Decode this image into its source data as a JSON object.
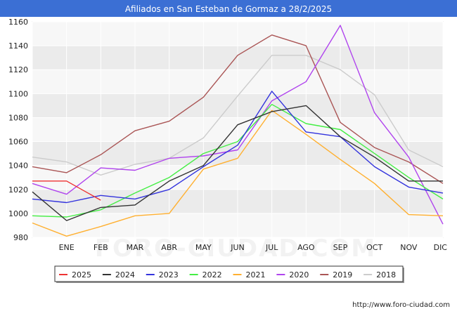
{
  "title": "Afiliados en San Esteban de Gormaz a 28/2/2025",
  "footer": "http://www.foro-ciudad.com",
  "watermark": "FORO-CIUDAD.COM",
  "colors": {
    "header_bg": "#3b6fd4",
    "plot_bg": "#f7f7f7",
    "grid": "#ffffff"
  },
  "chart_data": {
    "type": "line",
    "title": "Afiliados en San Esteban de Gormaz a 28/2/2025",
    "categories": [
      "",
      "ENE",
      "FEB",
      "MAR",
      "ABR",
      "MAY",
      "JUN",
      "JUL",
      "AGO",
      "SEP",
      "OCT",
      "NOV",
      "DIC"
    ],
    "xlabel": "",
    "ylabel": "",
    "ylim": [
      980,
      1160
    ],
    "yticks": [
      980,
      1000,
      1020,
      1040,
      1060,
      1080,
      1100,
      1120,
      1140,
      1160
    ],
    "grid": true,
    "legend_position": "bottom",
    "series": [
      {
        "name": "2025",
        "color": "#ee3333",
        "values": [
          1027,
          1027,
          1011,
          null,
          null,
          null,
          null,
          null,
          null,
          null,
          null,
          null,
          null
        ]
      },
      {
        "name": "2024",
        "color": "#333333",
        "values": [
          1018,
          994,
          1005,
          1007,
          1027,
          1040,
          1074,
          1085,
          1090,
          1064,
          1047,
          1027,
          1027
        ]
      },
      {
        "name": "2023",
        "color": "#3333dd",
        "values": [
          1012,
          1009,
          1015,
          1012,
          1020,
          1039,
          1057,
          1102,
          1068,
          1064,
          1039,
          1022,
          1017
        ]
      },
      {
        "name": "2022",
        "color": "#44ee44",
        "values": [
          998,
          997,
          1003,
          1017,
          1030,
          1050,
          1060,
          1091,
          1075,
          1070,
          1050,
          1030,
          1012
        ]
      },
      {
        "name": "2021",
        "color": "#ffb030",
        "values": [
          992,
          981,
          989,
          998,
          1000,
          1037,
          1046,
          1086,
          1066,
          1045,
          1025,
          999,
          998
        ]
      },
      {
        "name": "2020",
        "color": "#b044ee",
        "values": [
          1025,
          1016,
          1038,
          1036,
          1046,
          1048,
          1053,
          1094,
          1110,
          1157,
          1084,
          1047,
          991
        ]
      },
      {
        "name": "2019",
        "color": "#aa5555",
        "values": [
          1039,
          1034,
          1049,
          1069,
          1077,
          1097,
          1132,
          1149,
          1140,
          1076,
          1055,
          1043,
          1025
        ]
      },
      {
        "name": "2018",
        "color": "#cccccc",
        "values": [
          1047,
          1043,
          1032,
          1041,
          1046,
          1063,
          1098,
          1132,
          1132,
          1120,
          1099,
          1053,
          1039
        ]
      }
    ]
  }
}
